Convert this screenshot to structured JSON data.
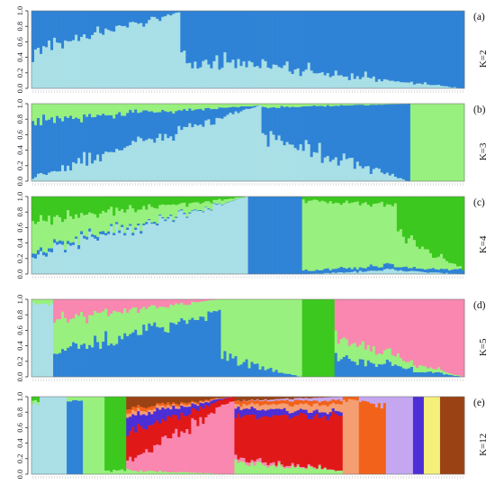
{
  "figure": {
    "type": "structure-admixture-barplot"
  },
  "chart_data": [
    {
      "type": "bar",
      "stacked": true,
      "panel": "(a)",
      "k_label": "K=2",
      "ylim": [
        0,
        1
      ],
      "yticks": [
        "0.0",
        "0.2",
        "0.4",
        "0.6",
        "0.8",
        "1.0"
      ],
      "n_individuals": 160,
      "colors": [
        "#a9dfe6",
        "#2f83d6"
      ],
      "segments": [
        {
          "n": 55,
          "start": [
            0.48,
            0.52
          ],
          "end": [
            0.98,
            0.02
          ]
        },
        {
          "n": 105,
          "start": [
            0.4,
            0.6
          ],
          "end": [
            0.0,
            1.0
          ]
        }
      ]
    },
    {
      "type": "bar",
      "stacked": true,
      "panel": "(b)",
      "k_label": "K=3",
      "ylim": [
        0,
        1
      ],
      "yticks": [
        "0.0",
        "0.2",
        "0.4",
        "0.6",
        "0.8",
        "1.0"
      ],
      "n_individuals": 160,
      "colors": [
        "#a9dfe6",
        "#2f83d6",
        "#98f07e"
      ],
      "segments": [
        {
          "n": 85,
          "start": [
            0.05,
            0.75,
            0.2
          ],
          "end": [
            0.98,
            0.0,
            0.02
          ]
        },
        {
          "n": 55,
          "start": [
            0.6,
            0.35,
            0.05
          ],
          "end": [
            0.0,
            1.0,
            0.0
          ]
        },
        {
          "n": 20,
          "start": [
            0.0,
            0.0,
            1.0
          ],
          "end": [
            0.0,
            0.0,
            1.0
          ]
        }
      ]
    },
    {
      "type": "bar",
      "stacked": true,
      "panel": "(c)",
      "k_label": "K=4",
      "ylim": [
        0,
        1
      ],
      "yticks": [
        "0.0",
        "0.2",
        "0.4",
        "0.6",
        "0.8",
        "1.0"
      ],
      "n_individuals": 160,
      "colors": [
        "#a9dfe6",
        "#2f83d6",
        "#98f07e",
        "#3cc81e"
      ],
      "segments": [
        {
          "n": 80,
          "start": [
            0.25,
            0.05,
            0.4,
            0.3
          ],
          "end": [
            1.0,
            0.0,
            0.0,
            0.0
          ]
        },
        {
          "n": 20,
          "start": [
            0.0,
            1.0,
            0.0,
            0.0
          ],
          "end": [
            0.0,
            1.0,
            0.0,
            0.0
          ]
        },
        {
          "n": 35,
          "start": [
            0.0,
            0.05,
            0.9,
            0.05
          ],
          "end": [
            0.05,
            0.05,
            0.8,
            0.1
          ]
        },
        {
          "n": 25,
          "start": [
            0.05,
            0.05,
            0.45,
            0.45
          ],
          "end": [
            0.0,
            0.05,
            0.0,
            0.95
          ]
        }
      ]
    },
    {
      "type": "bar",
      "stacked": true,
      "panel": "(d)",
      "k_label": "K=5",
      "ylim": [
        0,
        1
      ],
      "yticks": [
        "0.0",
        "0.2",
        "0.4",
        "0.6",
        "0.8",
        "1.0"
      ],
      "n_individuals": 160,
      "colors": [
        "#a9dfe6",
        "#2f83d6",
        "#98f07e",
        "#3cc81e",
        "#f987b0"
      ],
      "segments": [
        {
          "n": 8,
          "start": [
            0.95,
            0.0,
            0.05,
            0.0,
            0.0
          ],
          "end": [
            0.95,
            0.0,
            0.05,
            0.0,
            0.0
          ]
        },
        {
          "n": 62,
          "start": [
            0.0,
            0.3,
            0.45,
            0.0,
            0.25
          ],
          "end": [
            0.0,
            0.85,
            0.15,
            0.0,
            0.0
          ]
        },
        {
          "n": 30,
          "start": [
            0.0,
            0.25,
            0.75,
            0.0,
            0.0
          ],
          "end": [
            0.0,
            0.0,
            1.0,
            0.0,
            0.0
          ]
        },
        {
          "n": 12,
          "start": [
            0.0,
            0.0,
            0.0,
            1.0,
            0.0
          ],
          "end": [
            0.0,
            0.0,
            0.0,
            1.0,
            0.0
          ]
        },
        {
          "n": 48,
          "start": [
            0.0,
            0.25,
            0.25,
            0.0,
            0.5
          ],
          "end": [
            0.0,
            0.0,
            0.0,
            0.0,
            1.0
          ]
        }
      ]
    },
    {
      "type": "bar",
      "stacked": true,
      "panel": "(e)",
      "k_label": "K=12",
      "ylim": [
        0,
        1
      ],
      "yticks": [
        "0.0",
        "0.2",
        "0.4",
        "0.6",
        "0.8",
        "1.0"
      ],
      "n_individuals": 160,
      "colors": [
        "#a9dfe6",
        "#2f83d6",
        "#98f07e",
        "#3cc81e",
        "#f987b0",
        "#e01818",
        "#4b2ed6",
        "#f59e72",
        "#f2621a",
        "#c4a7f0",
        "#f4f07a",
        "#9a4214"
      ],
      "segments": [
        {
          "n": 3,
          "start": [
            0.9,
            0,
            0.05,
            0.05,
            0,
            0,
            0,
            0,
            0,
            0,
            0,
            0
          ],
          "end": [
            0.9,
            0,
            0.05,
            0.05,
            0,
            0,
            0,
            0,
            0,
            0,
            0,
            0
          ]
        },
        {
          "n": 10,
          "start": [
            1,
            0,
            0,
            0,
            0,
            0,
            0,
            0,
            0,
            0,
            0,
            0
          ],
          "end": [
            1,
            0,
            0,
            0,
            0,
            0,
            0,
            0,
            0,
            0,
            0,
            0
          ]
        },
        {
          "n": 6,
          "start": [
            0,
            0.95,
            0.05,
            0,
            0,
            0,
            0,
            0,
            0,
            0,
            0,
            0
          ],
          "end": [
            0,
            0.95,
            0.05,
            0,
            0,
            0,
            0,
            0,
            0,
            0,
            0,
            0
          ]
        },
        {
          "n": 8,
          "start": [
            0,
            0,
            1,
            0,
            0,
            0,
            0,
            0,
            0,
            0,
            0,
            0
          ],
          "end": [
            0,
            0,
            1,
            0,
            0,
            0,
            0,
            0,
            0,
            0,
            0,
            0
          ]
        },
        {
          "n": 8,
          "start": [
            0,
            0,
            0.05,
            0.95,
            0,
            0,
            0,
            0,
            0,
            0,
            0,
            0
          ],
          "end": [
            0,
            0,
            0.05,
            0.95,
            0,
            0,
            0,
            0,
            0,
            0,
            0,
            0
          ]
        },
        {
          "n": 40,
          "start": [
            0,
            0,
            0.05,
            0,
            0.1,
            0.4,
            0.2,
            0.05,
            0.05,
            0,
            0,
            0.15
          ],
          "end": [
            0,
            0,
            0,
            0,
            0.95,
            0.05,
            0,
            0,
            0,
            0,
            0,
            0
          ]
        },
        {
          "n": 40,
          "start": [
            0,
            0,
            0.15,
            0,
            0.05,
            0.55,
            0.1,
            0.05,
            0.05,
            0,
            0,
            0.05
          ],
          "end": [
            0,
            0,
            0.05,
            0,
            0,
            0.7,
            0.05,
            0.1,
            0.05,
            0.05,
            0,
            0
          ]
        },
        {
          "n": 6,
          "start": [
            0,
            0,
            0,
            0,
            0,
            0,
            0,
            0.95,
            0.05,
            0,
            0,
            0
          ],
          "end": [
            0,
            0,
            0,
            0,
            0,
            0,
            0,
            0.95,
            0.05,
            0,
            0,
            0
          ]
        },
        {
          "n": 10,
          "start": [
            0,
            0,
            0,
            0,
            0,
            0,
            0,
            0,
            0.95,
            0.05,
            0,
            0
          ],
          "end": [
            0,
            0,
            0,
            0,
            0,
            0,
            0,
            0,
            0.9,
            0.1,
            0,
            0
          ]
        },
        {
          "n": 10,
          "start": [
            0,
            0,
            0,
            0,
            0,
            0,
            0,
            0,
            0,
            1,
            0,
            0
          ],
          "end": [
            0,
            0,
            0,
            0,
            0,
            0,
            0,
            0,
            0,
            1,
            0,
            0
          ]
        },
        {
          "n": 4,
          "start": [
            0,
            0,
            0,
            0,
            0,
            0,
            1,
            0,
            0,
            0,
            0,
            0
          ],
          "end": [
            0,
            0,
            0,
            0,
            0,
            0,
            1,
            0,
            0,
            0,
            0,
            0
          ]
        },
        {
          "n": 6,
          "start": [
            0,
            0,
            0,
            0,
            0,
            0,
            0,
            0,
            0,
            0,
            1,
            0
          ],
          "end": [
            0,
            0,
            0,
            0,
            0,
            0,
            0,
            0,
            0,
            0,
            1,
            0
          ]
        },
        {
          "n": 9,
          "start": [
            0,
            0,
            0,
            0,
            0,
            0,
            0,
            0,
            0,
            0,
            0,
            1
          ],
          "end": [
            0,
            0,
            0,
            0,
            0,
            0,
            0,
            0,
            0,
            0,
            0,
            1
          ]
        }
      ]
    }
  ]
}
